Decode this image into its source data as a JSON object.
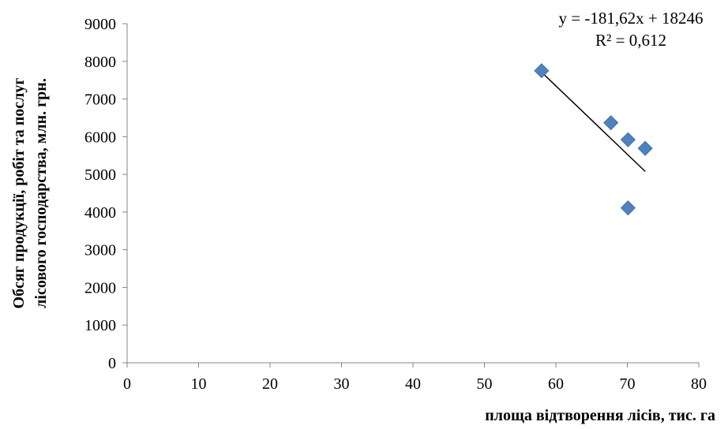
{
  "chart_data": {
    "type": "scatter",
    "xlabel": "площа відтворення лісів, тис. га",
    "ylabel_lines": [
      "Обсяг продукції, робіт та послуг",
      "лісового господарства, млн. грн."
    ],
    "xlim": [
      0,
      80
    ],
    "ylim": [
      0,
      9000
    ],
    "x_ticks": [
      0,
      10,
      20,
      30,
      40,
      50,
      60,
      70,
      80
    ],
    "y_ticks": [
      0,
      1000,
      2000,
      3000,
      4000,
      5000,
      6000,
      7000,
      8000,
      9000
    ],
    "grid": false,
    "marker_color": "#4F81BD",
    "points": [
      {
        "x": 58,
        "y": 7750
      },
      {
        "x": 67.7,
        "y": 6370
      },
      {
        "x": 70.1,
        "y": 5920
      },
      {
        "x": 72.5,
        "y": 5690
      },
      {
        "x": 70.1,
        "y": 4110
      }
    ],
    "trendline": {
      "slope": -181.62,
      "intercept": 18246,
      "x_range": [
        58,
        72.5
      ],
      "equation": "y = -181,62x + 18246",
      "r_squared": "R² = 0,612"
    }
  }
}
